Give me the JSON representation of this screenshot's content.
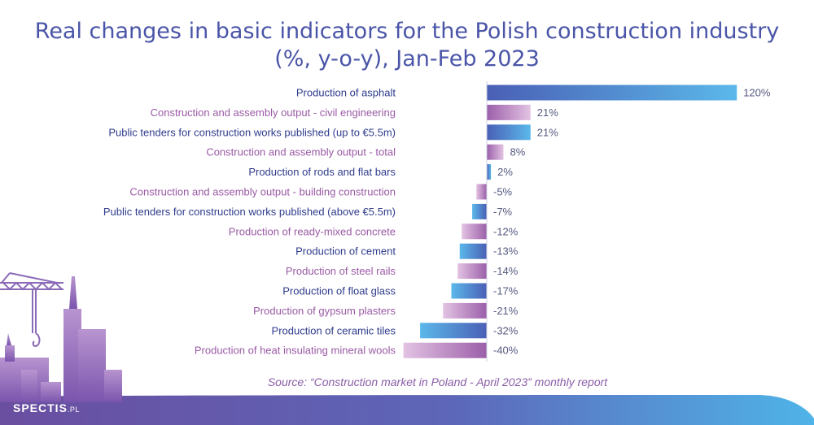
{
  "chart_data": {
    "type": "bar",
    "orientation": "horizontal",
    "title": "Real changes in basic indicators for the Polish construction industry (%, y-o-y), Jan-Feb 2023",
    "title_lines": [
      "Real changes in basic indicators for the Polish construction industry",
      "(%, y-o-y), Jan-Feb 2023"
    ],
    "categories": [
      "Production of asphalt",
      "Construction and assembly output - civil engineering",
      "Public tenders for construction works published (up to €5.5m)",
      "Construction and assembly output - total",
      "Production of rods and flat bars",
      "Construction and assembly output - building construction",
      "Public tenders for construction works published (above €5.5m)",
      "Production of ready-mixed concrete",
      "Production of cement",
      "Production of steel rails",
      "Production of float glass",
      "Production of gypsum plasters",
      "Production of ceramic tiles",
      "Production of heat insulating mineral wools"
    ],
    "values": [
      120,
      21,
      21,
      8,
      2,
      -5,
      -7,
      -12,
      -13,
      -14,
      -17,
      -21,
      -32,
      -40
    ],
    "value_labels": [
      "120%",
      "21%",
      "21%",
      "8%",
      "2%",
      "-5%",
      "-7%",
      "-12%",
      "-13%",
      "-14%",
      "-17%",
      "-21%",
      "-32%",
      "-40%"
    ],
    "xlim": [
      -40,
      120
    ],
    "grid": false,
    "colors": {
      "blue_start": "#4a5fb5",
      "blue_end": "#5bb8ea",
      "purple_start": "#9b5fa9",
      "purple_end": "#e3c3e3",
      "label_blue": "#2f3c8c",
      "label_purple": "#9a5aa5",
      "value_text": "#555a80",
      "axis": "#cfd2e0"
    }
  },
  "source": "Source: “Construction market in Poland - April 2023” monthly report",
  "brand": {
    "name": "SPECTIS",
    "suffix": ".PL"
  },
  "colors": {
    "title": "#4a55a8",
    "footer_purple": "#6a4ea0",
    "footer_blue": "#4fb4e8"
  }
}
